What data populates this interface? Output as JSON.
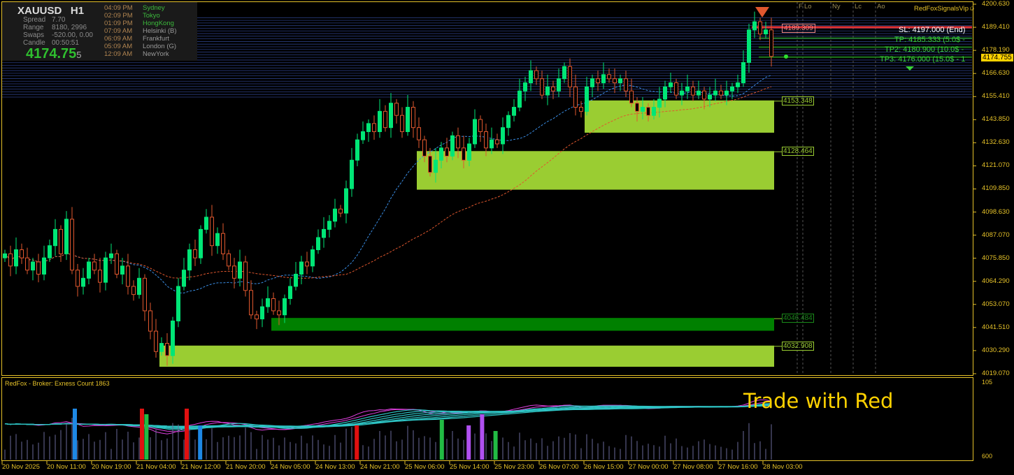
{
  "info_panel": {
    "symbol": "XAUUSD",
    "timeframe": "H1",
    "stats": [
      {
        "k": "Spread",
        "v": "7.70"
      },
      {
        "k": "Range",
        "v": "8180, 2996"
      },
      {
        "k": "Swaps",
        "v": "-520.00, 0.00"
      },
      {
        "k": "Candle",
        "v": "00:50:51"
      }
    ],
    "price": "4174.75",
    "price_digit": "5",
    "sessions": [
      {
        "time": "04:09 PM",
        "city": "Sydney",
        "active": true
      },
      {
        "time": "02:09 PM",
        "city": "Tokyo",
        "active": true
      },
      {
        "time": "01:09 PM",
        "city": "HongKong",
        "active": true
      },
      {
        "time": "07:09 AM",
        "city": "Helsinki  (B)",
        "active": false
      },
      {
        "time": "06:09 AM",
        "city": "Frankfurt",
        "active": false
      },
      {
        "time": "05:09 AM",
        "city": "London  (G)",
        "active": false
      },
      {
        "time": "12:09 AM",
        "city": "NewYork",
        "active": false
      }
    ]
  },
  "brand_label": "RedFoxSignalsVip☺",
  "session_markers": [
    "F",
    "Lo",
    "Ny",
    "Lc",
    "Ao"
  ],
  "trade_labels": {
    "sl": "SL: 4197.000 (End)",
    "tp1": "TP: 4185.333 (5.0$ -",
    "tp2": "TP2: 4180.900 (10.0$ -",
    "tp3": "TP3: 4176.000 (15.0$ - 1"
  },
  "level_line": {
    "label": "4189.309",
    "price": 4189.309,
    "color": "#e03030"
  },
  "current_price_label": "4174.755",
  "indicator": {
    "label": "RedFox -  Broker: Exness    Count  1863",
    "overlay_text": "Trade with Red",
    "axis_top": "105",
    "axis_bottom": "600"
  },
  "colors": {
    "bull": "#00e676",
    "bear": "#e0572e",
    "zone": "#9acd32",
    "zone_dark": "#008000",
    "axis": "#e6c229",
    "band": "#2a3d80"
  },
  "chart_data": {
    "type": "candlestick",
    "title": "XAUUSD H1",
    "ylim": [
      4019.07,
      4200.63
    ],
    "y_ticks": [
      "4200.630",
      "4189.410",
      "4178.190",
      "4166.630",
      "4155.410",
      "4143.850",
      "4132.630",
      "4121.070",
      "4109.850",
      "4098.630",
      "4087.070",
      "4075.850",
      "4064.290",
      "4053.070",
      "4041.510",
      "4030.290",
      "4019.070"
    ],
    "x_ticks": [
      "20 Nov 2025",
      "20 Nov 11:00",
      "20 Nov 19:00",
      "21 Nov 04:00",
      "21 Nov 12:00",
      "21 Nov 20:00",
      "24 Nov 05:00",
      "24 Nov 13:00",
      "24 Nov 21:00",
      "25 Nov 06:00",
      "25 Nov 14:00",
      "25 Nov 23:00",
      "26 Nov 07:00",
      "26 Nov 15:00",
      "27 Nov 00:00",
      "27 Nov 08:00",
      "27 Nov 16:00",
      "28 Nov 03:00"
    ],
    "first_open": 4076,
    "closes": [
      4078,
      4072,
      4080,
      4076,
      4070,
      4074,
      4068,
      4076,
      4082,
      4090,
      4078,
      4095,
      4070,
      4062,
      4066,
      4074,
      4070,
      4064,
      4076,
      4078,
      4068,
      4072,
      4062,
      4058,
      4066,
      4050,
      4040,
      4030,
      4034,
      4028,
      4045,
      4062,
      4070,
      4080,
      4076,
      4090,
      4096,
      4082,
      4088,
      4078,
      4072,
      4066,
      4074,
      4060,
      4048,
      4046,
      4052,
      4056,
      4050,
      4048,
      4056,
      4062,
      4068,
      4074,
      4072,
      4080,
      4086,
      4090,
      4094,
      4100,
      4098,
      4110,
      4124,
      4134,
      4138,
      4142,
      4138,
      4148,
      4140,
      4152,
      4146,
      4138,
      4150,
      4140,
      4134,
      4126,
      4118,
      4124,
      4130,
      4126,
      4136,
      4130,
      4124,
      4132,
      4144,
      4138,
      4130,
      4134,
      4132,
      4140,
      4146,
      4150,
      4158,
      4162,
      4168,
      4164,
      4156,
      4160,
      4158,
      4164,
      4170,
      4160,
      4150,
      4148,
      4160,
      4164,
      4162,
      4166,
      4164,
      4162,
      4164,
      4158,
      4152,
      4148,
      4150,
      4146,
      4150,
      4154,
      4160,
      4162,
      4156,
      4158,
      4160,
      4156,
      4158,
      4154,
      4156,
      4158,
      4156,
      4158,
      4160,
      4162,
      4172,
      4188,
      4192,
      4186,
      4188,
      4175
    ],
    "zones": [
      {
        "label": "4153.348",
        "top": 4153.348,
        "bottom": 4137.5,
        "start_index": 104,
        "tone": "light"
      },
      {
        "label": "4128.464",
        "top": 4128.464,
        "bottom": 4109.5,
        "start_index": 74,
        "tone": "light"
      },
      {
        "label": "4046.484",
        "top": 4046.484,
        "bottom": 4040.2,
        "start_index": 48,
        "tone": "dark"
      },
      {
        "label": "4032.908",
        "top": 4032.908,
        "bottom": 4022.5,
        "start_index": 28,
        "tone": "light"
      }
    ],
    "tp_levels": [
      4185.333,
      4180.9,
      4176.0
    ],
    "resistance_band": [
      4155.0,
      4195.0
    ],
    "moving_averages": [
      {
        "period": 20,
        "color": "#3a8ee6"
      },
      {
        "period": 50,
        "color": "#e0572e"
      }
    ],
    "signal_bars": [
      {
        "index": 15,
        "color": "#1e88e5"
      },
      {
        "index": 30,
        "color": "#e01010"
      },
      {
        "index": 31,
        "color": "#22bb44"
      },
      {
        "index": 40,
        "color": "#e01010"
      },
      {
        "index": 43,
        "color": "#1e88e5"
      },
      {
        "index": 78,
        "color": "#e01010"
      },
      {
        "index": 97,
        "color": "#22bb44"
      },
      {
        "index": 103,
        "color": "#b050f0"
      },
      {
        "index": 106,
        "color": "#b050f0"
      },
      {
        "index": 109,
        "color": "#22bb44"
      },
      {
        "index": 171,
        "color": "#22bb44"
      }
    ]
  }
}
